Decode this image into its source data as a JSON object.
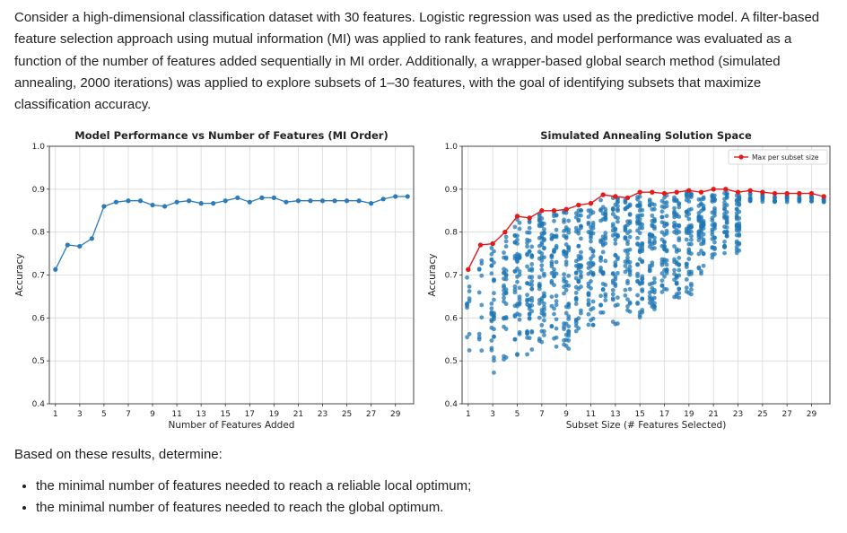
{
  "intro_text": "Consider a high-dimensional classification dataset with 30 features. Logistic regression was used as the predictive model. A filter-based feature selection approach using mutual information (MI) was applied to rank features, and model performance was evaluated as a function of the number of features added sequentially in MI order. Additionally, a wrapper-based global search method (simulated annealing, 2000 iterations) was applied to explore subsets of 1–30 features, with the goal of identifying subsets that maximize classification accuracy.",
  "question_text": "Based on these results, determine:",
  "items": [
    "the minimal number of features needed to reach a reliable local optimum;",
    "the minimal number of features needed to reach the global optimum."
  ],
  "colors": {
    "line_blue": "#2b7bba",
    "point_blue": "#1f77b4",
    "max_red": "#e31a1c"
  },
  "chart_data": [
    {
      "type": "line",
      "title": "Model Performance vs Number of Features (MI Order)",
      "xlabel": "Number of Features Added",
      "ylabel": "Accuracy",
      "xlim": [
        0.5,
        30.5
      ],
      "ylim": [
        0.4,
        1.0
      ],
      "xticks": [
        1,
        3,
        5,
        7,
        9,
        11,
        13,
        15,
        17,
        19,
        21,
        23,
        25,
        27,
        29
      ],
      "yticks": [
        "0.4",
        "0.5",
        "0.6",
        "0.7",
        "0.8",
        "0.9",
        "1.0"
      ],
      "grid": true,
      "series": [
        {
          "x": [
            1,
            2,
            3,
            4,
            5,
            6,
            7,
            8,
            9,
            10,
            11,
            12,
            13,
            14,
            15,
            16,
            17,
            18,
            19,
            20,
            21,
            22,
            23,
            24,
            25,
            26,
            27,
            28,
            29,
            30
          ],
          "values": [
            0.713,
            0.77,
            0.767,
            0.785,
            0.86,
            0.87,
            0.873,
            0.873,
            0.863,
            0.86,
            0.87,
            0.873,
            0.867,
            0.867,
            0.873,
            0.88,
            0.87,
            0.88,
            0.88,
            0.87,
            0.873,
            0.873,
            0.873,
            0.873,
            0.873,
            0.873,
            0.867,
            0.877,
            0.883,
            0.883
          ]
        }
      ]
    },
    {
      "type": "scatter",
      "title": "Simulated Annealing Solution Space",
      "xlabel": "Subset Size (# Features Selected)",
      "ylabel": "Accuracy",
      "xlim": [
        0.5,
        30.5
      ],
      "ylim": [
        0.4,
        1.0
      ],
      "xticks": [
        1,
        3,
        5,
        7,
        9,
        11,
        13,
        15,
        17,
        19,
        21,
        23,
        25,
        27,
        29
      ],
      "yticks": [
        "0.4",
        "0.5",
        "0.6",
        "0.7",
        "0.8",
        "0.9",
        "1.0"
      ],
      "grid": true,
      "legend": "top-right",
      "series": [
        {
          "name": "Max per subset size",
          "x": [
            1,
            2,
            3,
            4,
            5,
            6,
            7,
            8,
            9,
            10,
            11,
            12,
            13,
            14,
            15,
            16,
            17,
            18,
            19,
            20,
            21,
            22,
            23,
            24,
            25,
            26,
            27,
            28,
            29,
            30
          ],
          "values": [
            0.713,
            0.77,
            0.773,
            0.8,
            0.837,
            0.833,
            0.85,
            0.85,
            0.853,
            0.863,
            0.867,
            0.887,
            0.883,
            0.88,
            0.893,
            0.893,
            0.89,
            0.893,
            0.897,
            0.893,
            0.9,
            0.9,
            0.893,
            0.897,
            0.893,
            0.89,
            0.89,
            0.89,
            0.89,
            0.883
          ]
        }
      ],
      "spread": {
        "sizes": [
          1,
          2,
          3,
          4,
          5,
          6,
          7,
          8,
          9,
          10,
          11,
          12,
          13,
          14,
          15,
          16,
          17,
          18,
          19,
          20,
          21,
          22,
          23,
          24,
          25,
          26,
          27,
          28,
          29,
          30
        ],
        "min": [
          0.475,
          0.48,
          0.46,
          0.5,
          0.51,
          0.51,
          0.53,
          0.53,
          0.52,
          0.56,
          0.58,
          0.6,
          0.58,
          0.59,
          0.6,
          0.62,
          0.65,
          0.64,
          0.64,
          0.7,
          0.74,
          0.75,
          0.74,
          0.87,
          0.87,
          0.87,
          0.87,
          0.87,
          0.87,
          0.87
        ],
        "top": [
          0.695,
          0.765,
          0.77,
          0.79,
          0.83,
          0.83,
          0.845,
          0.845,
          0.85,
          0.86,
          0.86,
          0.88,
          0.88,
          0.88,
          0.89,
          0.89,
          0.89,
          0.89,
          0.895,
          0.89,
          0.895,
          0.895,
          0.89,
          0.89,
          0.89,
          0.885,
          0.885,
          0.885,
          0.885,
          0.88
        ]
      }
    }
  ]
}
